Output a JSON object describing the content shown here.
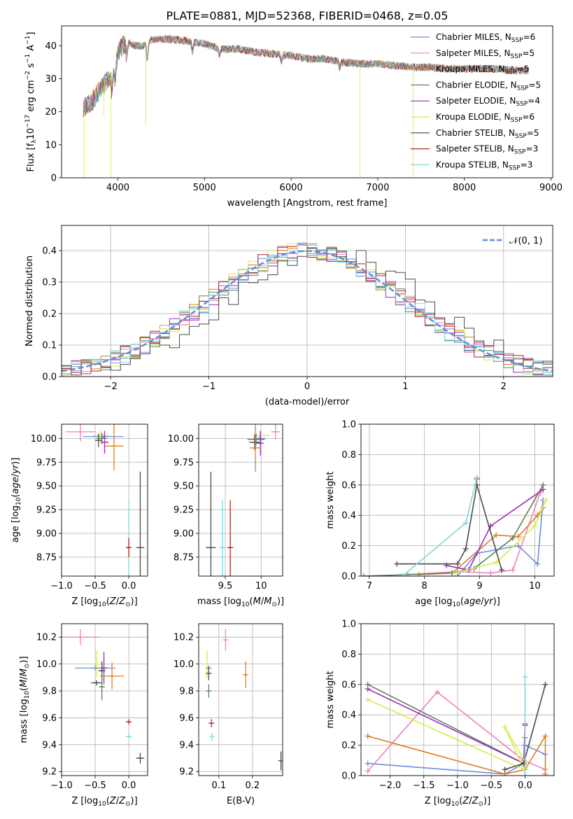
{
  "figure_title": "PLATE=0881, MJD=52368, FIBERID=0468, z=0.05",
  "series_colors": {
    "chabrier_miles": "#6a8fdf",
    "salpeter_miles": "#ec83b9",
    "kroupa_miles": "#e07b22",
    "chabrier_elodie": "#5a845a",
    "salpeter_elodie": "#9e2ab6",
    "kroupa_elodie": "#d8ea4c",
    "chabrier_stelib": "#4a4a4a",
    "salpeter_stelib": "#b22222",
    "kroupa_stelib": "#7fd8d8"
  },
  "chart_data": [
    {
      "id": "spectrum",
      "type": "line",
      "title": "PLATE=0881, MJD=52368, FIBERID=0468, z=0.05",
      "xlabel": "wavelength [Angstrom, rest frame]",
      "ylabel": "Flux [f_λ 10^-17 erg cm^-2 s^-1 A^-1]",
      "xlim": [
        3350,
        9020
      ],
      "ylim": [
        0,
        46
      ],
      "xticks": [
        4000,
        5000,
        6000,
        7000,
        8000,
        9000
      ],
      "yticks": [
        0,
        10,
        20,
        30,
        40
      ],
      "legend_position": "top-right",
      "legend": [
        {
          "key": "chabrier_miles",
          "label": "Chabrier MILES, N",
          "sub": "SSP",
          "suffix": "=6"
        },
        {
          "key": "salpeter_miles",
          "label": "Salpeter MILES, N",
          "sub": "SSP",
          "suffix": "=5"
        },
        {
          "key": "kroupa_miles",
          "label": "Kroupa MILES, N",
          "sub": "SSP",
          "suffix": "=5"
        },
        {
          "key": "chabrier_elodie",
          "label": "Chabrier ELODIE, N",
          "sub": "SSP",
          "suffix": "=5"
        },
        {
          "key": "salpeter_elodie",
          "label": "Salpeter ELODIE, N",
          "sub": "SSP",
          "suffix": "=4"
        },
        {
          "key": "kroupa_elodie",
          "label": "Kroupa ELODIE, N",
          "sub": "SSP",
          "suffix": "=6"
        },
        {
          "key": "chabrier_stelib",
          "label": "Chabrier STELIB, N",
          "sub": "SSP",
          "suffix": "=5"
        },
        {
          "key": "salpeter_stelib",
          "label": "Salpeter STELIB, N",
          "sub": "SSP",
          "suffix": "=3"
        },
        {
          "key": "kroupa_stelib",
          "label": "Kroupa STELIB, N",
          "sub": "SSP",
          "suffix": "=3"
        }
      ],
      "continuum": [
        [
          3600,
          21
        ],
        [
          3700,
          23
        ],
        [
          3800,
          27
        ],
        [
          3900,
          30
        ],
        [
          3950,
          33
        ],
        [
          4000,
          38
        ],
        [
          4050,
          40
        ],
        [
          4100,
          41
        ],
        [
          4200,
          40
        ],
        [
          4300,
          40
        ],
        [
          4400,
          42
        ],
        [
          4600,
          42
        ],
        [
          4800,
          41.5
        ],
        [
          5000,
          40.5
        ],
        [
          5200,
          39
        ],
        [
          5400,
          39
        ],
        [
          5600,
          38
        ],
        [
          5800,
          37.5
        ],
        [
          6000,
          37
        ],
        [
          6200,
          36
        ],
        [
          6400,
          36
        ],
        [
          6600,
          35
        ],
        [
          6800,
          34.5
        ],
        [
          7000,
          34.5
        ],
        [
          7200,
          34
        ],
        [
          7400,
          33.5
        ],
        [
          7600,
          33.5
        ],
        [
          7800,
          33
        ],
        [
          8000,
          33
        ],
        [
          8200,
          33
        ],
        [
          8400,
          33
        ],
        [
          8600,
          32.5
        ],
        [
          8750,
          32.5
        ]
      ],
      "spikes": [
        [
          3610,
          0
        ],
        [
          3920,
          0
        ],
        [
          6795,
          0
        ],
        [
          7410,
          0
        ],
        [
          4320,
          16
        ],
        [
          3840,
          19
        ]
      ]
    },
    {
      "id": "residuals",
      "type": "histogram",
      "xlabel": "(data-model)/error",
      "ylabel": "Normed distribution",
      "xlim": [
        -2.5,
        2.5
      ],
      "ylim": [
        0,
        0.48
      ],
      "xticks": [
        -2,
        -1,
        0,
        1,
        2
      ],
      "yticks": [
        0.0,
        0.1,
        0.2,
        0.3,
        0.4
      ],
      "xtick_labels": [
        "−2",
        "−1",
        "0",
        "1",
        "2"
      ],
      "bin_width": 0.1,
      "reference_curve": {
        "label": "𝒩(0, 1)",
        "mean": 0,
        "sigma": 1,
        "color": "#5b8fd9"
      },
      "legend_position": "top-right",
      "histogram_color_order": [
        "kroupa_miles",
        "salpeter_miles",
        "salpeter_elodie",
        "chabrier_elodie",
        "kroupa_elodie",
        "chabrier_miles",
        "salpeter_stelib",
        "kroupa_stelib",
        "chabrier_stelib"
      ]
    },
    {
      "id": "age_vs_Z",
      "type": "scatter",
      "xlabel": "Z [log10(Z/Z⊙)]",
      "ylabel": "age [log10(age/yr)]",
      "xlim": [
        -1.0,
        0.28
      ],
      "ylim": [
        8.55,
        10.15
      ],
      "xticks": [
        -1.0,
        -0.5,
        0.0
      ],
      "xtick_labels": [
        "−1.0",
        "−0.5",
        "0.0"
      ],
      "yticks": [
        8.75,
        9.0,
        9.25,
        9.5,
        9.75,
        10.0
      ],
      "points": [
        {
          "key": "salpeter_miles",
          "x": -0.72,
          "y": 10.07,
          "xerr": 0.22,
          "yerr": 0.1
        },
        {
          "key": "chabrier_miles",
          "x": -0.38,
          "y": 10.02,
          "xerr": 0.3,
          "yerr": 0.02
        },
        {
          "key": "kroupa_elodie",
          "x": -0.42,
          "y": 10.03,
          "xerr": 0.12,
          "yerr": 0.06
        },
        {
          "key": "chabrier_elodie",
          "x": -0.4,
          "y": 10.0,
          "xerr": 0.08,
          "yerr": 0.06
        },
        {
          "key": "salpeter_elodie",
          "x": -0.36,
          "y": 9.96,
          "xerr": 0.06,
          "yerr": 0.12
        },
        {
          "key": "chabrier_stelib",
          "x": -0.45,
          "y": 9.98,
          "xerr": 0.05,
          "yerr": 0.07
        },
        {
          "key": "kroupa_miles",
          "x": -0.22,
          "y": 9.92,
          "xerr": 0.14,
          "yerr": 0.26
        },
        {
          "key": "kroupa_stelib",
          "x": 0.0,
          "y": 8.85,
          "xerr": 0.02,
          "yerr": 0.5
        },
        {
          "key": "salpeter_stelib",
          "x": 0.0,
          "y": 8.85,
          "xerr": 0.02,
          "yerr": 0.1
        },
        {
          "key": "chabrier_stelib",
          "x": 0.17,
          "y": 8.85,
          "xerr": 0.06,
          "yerr": 0.8
        }
      ]
    },
    {
      "id": "age_vs_mass",
      "type": "scatter",
      "xlabel": "mass [log10(M/M⊙)]",
      "xlim": [
        9.13,
        10.3
      ],
      "ylim": [
        8.55,
        10.15
      ],
      "xticks": [
        9.5,
        10.0
      ],
      "yticks": [
        8.75,
        9.0,
        9.25,
        9.5,
        9.75,
        10.0
      ],
      "points": [
        {
          "key": "salpeter_miles",
          "x": 10.2,
          "y": 10.07,
          "xerr": 0.06,
          "yerr": 0.08
        },
        {
          "key": "kroupa_elodie",
          "x": 10.0,
          "y": 10.03,
          "xerr": 0.12,
          "yerr": 0.04
        },
        {
          "key": "chabrier_miles",
          "x": 9.98,
          "y": 10.0,
          "xerr": 0.08,
          "yerr": 0.02
        },
        {
          "key": "chabrier_elodie",
          "x": 9.93,
          "y": 9.99,
          "xerr": 0.12,
          "yerr": 0.06
        },
        {
          "key": "chabrier_stelib",
          "x": 9.91,
          "y": 9.96,
          "xerr": 0.08,
          "yerr": 0.08
        },
        {
          "key": "salpeter_elodie",
          "x": 9.99,
          "y": 9.95,
          "xerr": 0.05,
          "yerr": 0.13
        },
        {
          "key": "kroupa_miles",
          "x": 9.92,
          "y": 9.9,
          "xerr": 0.08,
          "yerr": 0.25
        },
        {
          "key": "chabrier_stelib",
          "x": 9.3,
          "y": 8.85,
          "xerr": 0.07,
          "yerr": 0.8
        },
        {
          "key": "kroupa_stelib",
          "x": 9.46,
          "y": 8.85,
          "xerr": 0.04,
          "yerr": 0.5
        },
        {
          "key": "salpeter_stelib",
          "x": 9.57,
          "y": 8.85,
          "xerr": 0.04,
          "yerr": 0.5
        }
      ]
    },
    {
      "id": "weight_vs_age",
      "type": "line",
      "xlabel": "age [log10(age/yr)]",
      "ylabel": "mass weight",
      "xlim": [
        6.85,
        10.35
      ],
      "ylim": [
        0,
        1.0
      ],
      "xticks": [
        7,
        8,
        9,
        10
      ],
      "yticks": [
        0.0,
        0.2,
        0.4,
        0.6,
        0.8,
        1.0
      ],
      "series": [
        {
          "key": "chabrier_miles",
          "x": [
            8.6,
            8.95,
            9.7,
            10.05,
            10.15
          ],
          "y": [
            0.0,
            0.15,
            0.2,
            0.08,
            0.5
          ]
        },
        {
          "key": "salpeter_miles",
          "x": [
            7.7,
            8.6,
            9.2,
            9.6,
            10.1
          ],
          "y": [
            0.01,
            0.03,
            0.02,
            0.04,
            0.55
          ]
        },
        {
          "key": "kroupa_miles",
          "x": [
            7.9,
            8.5,
            9.3,
            9.7,
            10.05,
            10.15
          ],
          "y": [
            0.01,
            0.02,
            0.27,
            0.26,
            0.4,
            0.45
          ]
        },
        {
          "key": "chabrier_elodie",
          "x": [
            6.9,
            8.5,
            8.9,
            9.6,
            10.15
          ],
          "y": [
            0.0,
            0.02,
            0.05,
            0.25,
            0.6
          ]
        },
        {
          "key": "salpeter_elodie",
          "x": [
            8.4,
            8.8,
            9.2,
            10.15
          ],
          "y": [
            0.07,
            0.04,
            0.33,
            0.57
          ]
        },
        {
          "key": "kroupa_elodie",
          "x": [
            8.55,
            9.3,
            10.0,
            10.2
          ],
          "y": [
            0.02,
            0.09,
            0.33,
            0.5
          ]
        },
        {
          "key": "chabrier_stelib",
          "x": [
            7.5,
            8.6,
            8.75,
            8.95,
            9.4
          ],
          "y": [
            0.08,
            0.08,
            0.18,
            0.6,
            0.04
          ]
        },
        {
          "key": "salpeter_stelib",
          "x": [
            8.95
          ],
          "y": [
            0.64
          ]
        },
        {
          "key": "kroupa_stelib",
          "x": [
            7.6,
            8.75,
            8.95
          ],
          "y": [
            0.0,
            0.35,
            0.65
          ]
        }
      ]
    },
    {
      "id": "mass_vs_Z",
      "type": "scatter",
      "xlabel": "Z [log10(Z/Z⊙)]",
      "ylabel": "mass [log10(M/M⊙)]",
      "xlim": [
        -1.0,
        0.28
      ],
      "ylim": [
        9.17,
        10.3
      ],
      "xticks": [
        -1.0,
        -0.5,
        0.0
      ],
      "xtick_labels": [
        "−1.0",
        "−0.5",
        "0.0"
      ],
      "yticks": [
        9.2,
        9.4,
        9.6,
        9.8,
        10.0,
        10.2
      ],
      "points": [
        {
          "key": "salpeter_miles",
          "x": -0.72,
          "y": 10.2,
          "xerr": 0.28,
          "yerr": 0.06
        },
        {
          "key": "kroupa_elodie",
          "x": -0.48,
          "y": 10.0,
          "xerr": 0.04,
          "yerr": 0.1
        },
        {
          "key": "chabrier_miles",
          "x": -0.5,
          "y": 9.97,
          "xerr": 0.3,
          "yerr": 0.02
        },
        {
          "key": "salpeter_elodie",
          "x": -0.37,
          "y": 9.97,
          "xerr": 0.05,
          "yerr": 0.12
        },
        {
          "key": "chabrier_stelib",
          "x": -0.4,
          "y": 9.95,
          "xerr": 0.05,
          "yerr": 0.07
        },
        {
          "key": "kroupa_miles",
          "x": -0.25,
          "y": 9.91,
          "xerr": 0.18,
          "yerr": 0.1
        },
        {
          "key": "chabrier_elodie",
          "x": -0.4,
          "y": 9.83,
          "xerr": 0.04,
          "yerr": 0.1
        },
        {
          "key": "chabrier_stelib",
          "x": -0.48,
          "y": 9.86,
          "xerr": 0.08,
          "yerr": 0.02
        },
        {
          "key": "salpeter_stelib",
          "x": 0.0,
          "y": 9.57,
          "xerr": 0.04,
          "yerr": 0.02
        },
        {
          "key": "kroupa_stelib",
          "x": 0.0,
          "y": 9.46,
          "xerr": 0.04,
          "yerr": 0.02
        },
        {
          "key": "chabrier_stelib",
          "x": 0.17,
          "y": 9.3,
          "xerr": 0.06,
          "yerr": 0.04
        }
      ]
    },
    {
      "id": "mass_vs_ebv",
      "type": "scatter",
      "xlabel": "E(B-V)",
      "xlim": [
        0.04,
        0.29
      ],
      "ylim": [
        9.17,
        10.3
      ],
      "xticks": [
        0.1,
        0.2
      ],
      "yticks": [
        9.2,
        9.4,
        9.6,
        9.8,
        10.0,
        10.2
      ],
      "points": [
        {
          "key": "salpeter_miles",
          "x": 0.12,
          "y": 10.18,
          "xerr": 0.0,
          "yerr": 0.08
        },
        {
          "key": "kroupa_elodie",
          "x": 0.065,
          "y": 10.0,
          "xerr": 0.0,
          "yerr": 0.1
        },
        {
          "key": "chabrier_miles",
          "x": 0.07,
          "y": 9.97,
          "xerr": 0.0,
          "yerr": 0.02
        },
        {
          "key": "kroupa_miles",
          "x": 0.18,
          "y": 9.92,
          "xerr": 0.0,
          "yerr": 0.1
        },
        {
          "key": "chabrier_stelib",
          "x": 0.07,
          "y": 9.93,
          "xerr": 0.0,
          "yerr": 0.05
        },
        {
          "key": "chabrier_elodie",
          "x": 0.07,
          "y": 9.8,
          "xerr": 0.0,
          "yerr": 0.05
        },
        {
          "key": "salpeter_stelib",
          "x": 0.078,
          "y": 9.56,
          "xerr": 0.0,
          "yerr": 0.03
        },
        {
          "key": "kroupa_stelib",
          "x": 0.08,
          "y": 9.46,
          "xerr": 0.0,
          "yerr": 0.03
        },
        {
          "key": "chabrier_stelib",
          "x": 0.285,
          "y": 9.28,
          "xerr": 0.0,
          "yerr": 0.07
        }
      ]
    },
    {
      "id": "weight_vs_Z",
      "type": "line",
      "xlabel": "Z [log10(Z/Z⊙)]",
      "ylabel": "mass weight",
      "xlim": [
        -2.43,
        0.43
      ],
      "ylim": [
        0,
        1.0
      ],
      "xticks": [
        -2.0,
        -1.5,
        -1.0,
        -0.5,
        0.0
      ],
      "xtick_labels": [
        "−2.0",
        "−1.5",
        "−1.0",
        "−0.5",
        "0.0"
      ],
      "yticks": [
        0.0,
        0.2,
        0.4,
        0.6,
        0.8,
        1.0
      ],
      "series": [
        {
          "key": "chabrier_miles",
          "x": [
            -2.33,
            -0.3,
            -0.02,
            0.0,
            0.3
          ],
          "y": [
            0.08,
            0.01,
            0.08,
            0.2,
            0.14
          ]
        },
        {
          "key": "salpeter_miles",
          "x": [
            -2.33,
            -1.3,
            -0.02,
            0.3
          ],
          "y": [
            0.03,
            0.55,
            0.1,
            0.04
          ]
        },
        {
          "key": "kroupa_miles",
          "x": [
            -2.33,
            -0.3,
            0.0,
            0.3,
            0.3
          ],
          "y": [
            0.26,
            0.01,
            0.04,
            0.26,
            0.01
          ]
        },
        {
          "key": "chabrier_elodie",
          "x": [
            -2.33,
            -0.02,
            0.0
          ],
          "y": [
            0.6,
            0.08,
            0.25
          ]
        },
        {
          "key": "salpeter_elodie",
          "x": [
            -2.33,
            -0.02,
            0.0
          ],
          "y": [
            0.57,
            0.08,
            0.33
          ]
        },
        {
          "key": "kroupa_elodie",
          "x": [
            -2.33,
            -0.02,
            -0.3,
            0.0
          ],
          "y": [
            0.5,
            0.04,
            0.32,
            0.09
          ]
        },
        {
          "key": "chabrier_stelib",
          "x": [
            -0.3,
            -0.02,
            0.3
          ],
          "y": [
            0.04,
            0.08,
            0.6
          ]
        },
        {
          "key": "salpeter_stelib",
          "x": [
            0.0
          ],
          "y": [
            0.34
          ]
        },
        {
          "key": "kroupa_stelib",
          "x": [
            0.0,
            0.0
          ],
          "y": [
            0.0,
            0.65
          ]
        }
      ]
    }
  ]
}
